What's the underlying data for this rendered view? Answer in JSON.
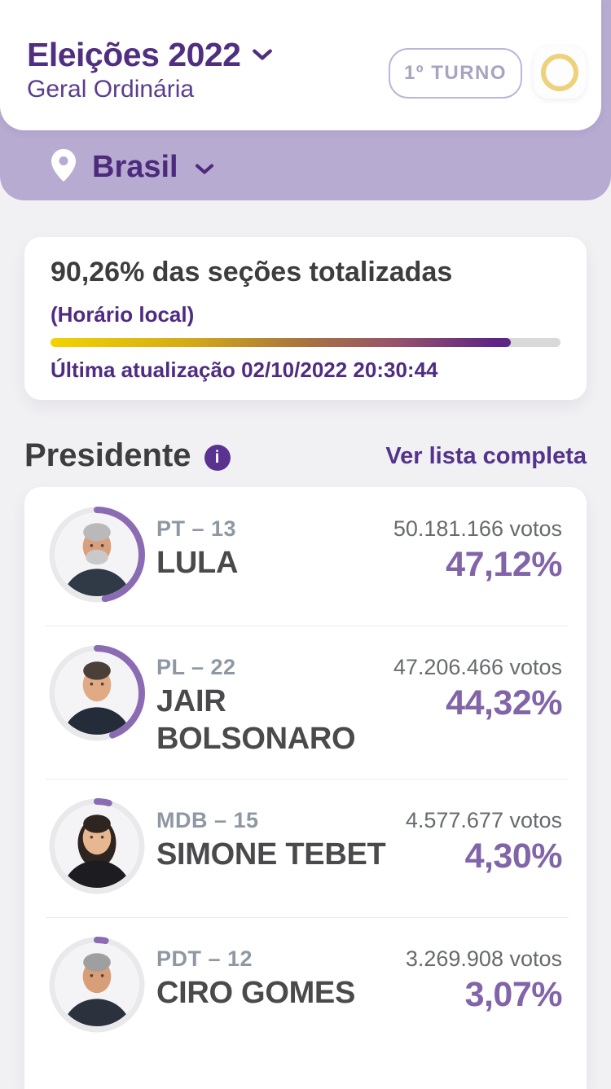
{
  "header": {
    "title": "Eleições 2022",
    "subtitle": "Geral Ordinária",
    "round_button_label": "1º TURNO"
  },
  "location_bar": {
    "label": "Brasil"
  },
  "totals_card": {
    "headline": "90,26% das seções totalizadas",
    "timezone_note": "(Horário local)",
    "progress_percent": 90.26,
    "progress_gradient_start": "#f3d300",
    "progress_gradient_end": "#5e2486",
    "progress_track_color": "#d9d9d9",
    "last_update": "Última atualização 02/10/2022 20:30:44"
  },
  "section": {
    "title": "Presidente",
    "link_label": "Ver lista completa"
  },
  "candidates": [
    {
      "party": "PT – 13",
      "name": "LULA",
      "votes": "50.181.166 votos",
      "percent_label": "47,12%",
      "percent": 47.12,
      "avatar": {
        "skin": "#d9a07e",
        "hair": "#b9b9b9",
        "beard": "#c9c9c9",
        "shirt": "#2f3a46",
        "long_hair": false
      }
    },
    {
      "party": "PL – 22",
      "name": "JAIR BOLSONARO",
      "votes": "47.206.466 votos",
      "percent_label": "44,32%",
      "percent": 44.32,
      "avatar": {
        "skin": "#e0aa85",
        "hair": "#4a4038",
        "beard": null,
        "shirt": "#232c38",
        "long_hair": false
      }
    },
    {
      "party": "MDB – 15",
      "name": "SIMONE TEBET",
      "votes": "4.577.677 votos",
      "percent_label": "4,30%",
      "percent": 4.3,
      "avatar": {
        "skin": "#e7b791",
        "hair": "#2e2420",
        "beard": null,
        "shirt": "#1d1d21",
        "long_hair": true
      }
    },
    {
      "party": "PDT – 12",
      "name": "CIRO GOMES",
      "votes": "3.269.908 votos",
      "percent_label": "3,07%",
      "percent": 3.07,
      "avatar": {
        "skin": "#d89e77",
        "hair": "#9f9f9f",
        "beard": null,
        "shirt": "#2b323d",
        "long_hair": false
      }
    }
  ],
  "colors": {
    "brand_purple_dark": "#502f80",
    "band_purple": "#b7abd1",
    "percent_purple": "#8265a8",
    "arc_purple": "#8b6cb3",
    "ring_yellow": "#edd27b",
    "background": "#f1f0f3"
  }
}
